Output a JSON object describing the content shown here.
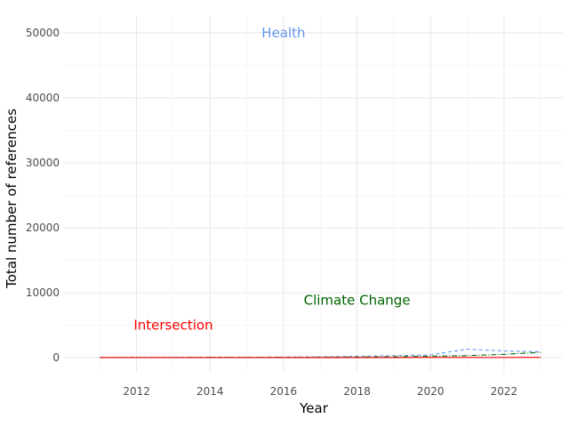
{
  "chart_data": {
    "type": "line",
    "title": "",
    "xlabel": "Year",
    "ylabel": "Total number of references",
    "xlim": [
      2010.0,
      2023.6
    ],
    "ylim": [
      -2200,
      52600
    ],
    "x_ticks": [
      2012,
      2014,
      2016,
      2018,
      2020,
      2022
    ],
    "x_tick_labels": [
      "2012",
      "2014",
      "2016",
      "2018",
      "2020",
      "2022"
    ],
    "y_ticks": [
      0,
      10000,
      20000,
      30000,
      40000,
      50000
    ],
    "y_tick_labels": [
      "0",
      "10000",
      "20000",
      "30000",
      "40000",
      "50000"
    ],
    "grid": true,
    "legend": "none",
    "series": [
      {
        "name": "Health",
        "color": "#6495ED",
        "dash": "dashed",
        "x": [
          2011,
          2012,
          2013,
          2014,
          2015,
          2016,
          2017,
          2018,
          2019,
          2020,
          2021,
          2022,
          2023
        ],
        "values": [
          20,
          30,
          40,
          40,
          50,
          80,
          100,
          200,
          300,
          400,
          1300,
          1000,
          900
        ]
      },
      {
        "name": "Climate Change",
        "color": "#006400",
        "dash": "dashdot",
        "x": [
          2011,
          2012,
          2013,
          2014,
          2015,
          2016,
          2017,
          2018,
          2019,
          2020,
          2021,
          2022,
          2023
        ],
        "values": [
          5,
          10,
          10,
          15,
          20,
          30,
          40,
          80,
          120,
          200,
          300,
          500,
          800
        ]
      },
      {
        "name": "Intersection",
        "color": "#FF0000",
        "dash": "solid",
        "x": [
          2011,
          2012,
          2013,
          2014,
          2015,
          2016,
          2017,
          2018,
          2019,
          2020,
          2021,
          2022,
          2023
        ],
        "values": [
          0,
          0,
          0,
          0,
          0,
          0,
          0,
          5,
          10,
          15,
          20,
          25,
          30
        ]
      }
    ],
    "annotations": [
      {
        "text": "Health",
        "x": 2016.0,
        "y": 50000,
        "color": "#6495ED"
      },
      {
        "text": "Climate Change",
        "x": 2018.0,
        "y": 8800,
        "color": "#006400"
      },
      {
        "text": "Intersection",
        "x": 2013.0,
        "y": 5000,
        "color": "#FF0000"
      }
    ]
  }
}
